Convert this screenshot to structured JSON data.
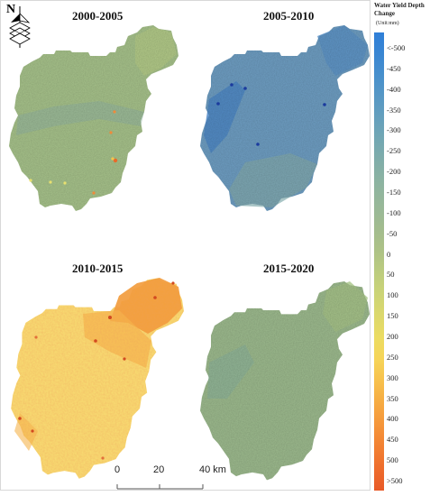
{
  "panels": [
    {
      "title": "2000-2005",
      "base_color": "#a8c48c",
      "accent_color": "#93b7a2",
      "dot_color": "#f08a3a"
    },
    {
      "title": "2005-2010",
      "base_color": "#6f9fc4",
      "accent_color": "#4f88c7",
      "dot_color": "#1b3b9e"
    },
    {
      "title": "2010-2015",
      "base_color": "#f7d870",
      "accent_color": "#f29a3a",
      "dot_color": "#d24a20"
    },
    {
      "title": "2015-2020",
      "base_color": "#9ebc8f",
      "accent_color": "#8fb59a",
      "dot_color": "#7fae9c"
    }
  ],
  "north_label": "N",
  "legend": {
    "title": "Water Yield Depth Change",
    "unit": "(Unit:mm)",
    "entries": [
      {
        "label": "<-500",
        "color": "#2f7fd8"
      },
      {
        "label": "-450",
        "color": "#3a86d2"
      },
      {
        "label": "-400",
        "color": "#4890cc"
      },
      {
        "label": "-350",
        "color": "#5898c4"
      },
      {
        "label": "-300",
        "color": "#66a0bc"
      },
      {
        "label": "-250",
        "color": "#74a8b2"
      },
      {
        "label": "-200",
        "color": "#82aea8"
      },
      {
        "label": "-150",
        "color": "#8eb4a0"
      },
      {
        "label": "-100",
        "color": "#98b898"
      },
      {
        "label": "-50",
        "color": "#a2bc8e"
      },
      {
        "label": "0",
        "color": "#adc286"
      },
      {
        "label": "50",
        "color": "#bccc7e"
      },
      {
        "label": "100",
        "color": "#ccd476"
      },
      {
        "label": "150",
        "color": "#dcd86c"
      },
      {
        "label": "200",
        "color": "#ecdc62"
      },
      {
        "label": "250",
        "color": "#f6d458"
      },
      {
        "label": "300",
        "color": "#f7c04c"
      },
      {
        "label": "350",
        "color": "#f6aa42"
      },
      {
        "label": "400",
        "color": "#f5953a"
      },
      {
        "label": "450",
        "color": "#f28032"
      },
      {
        "label": "500",
        "color": "#ee6c2c"
      },
      {
        "label": ">500",
        "color": "#e85a28"
      }
    ]
  },
  "scalebar": {
    "ticks": [
      "0",
      "20",
      "40 km"
    ]
  }
}
